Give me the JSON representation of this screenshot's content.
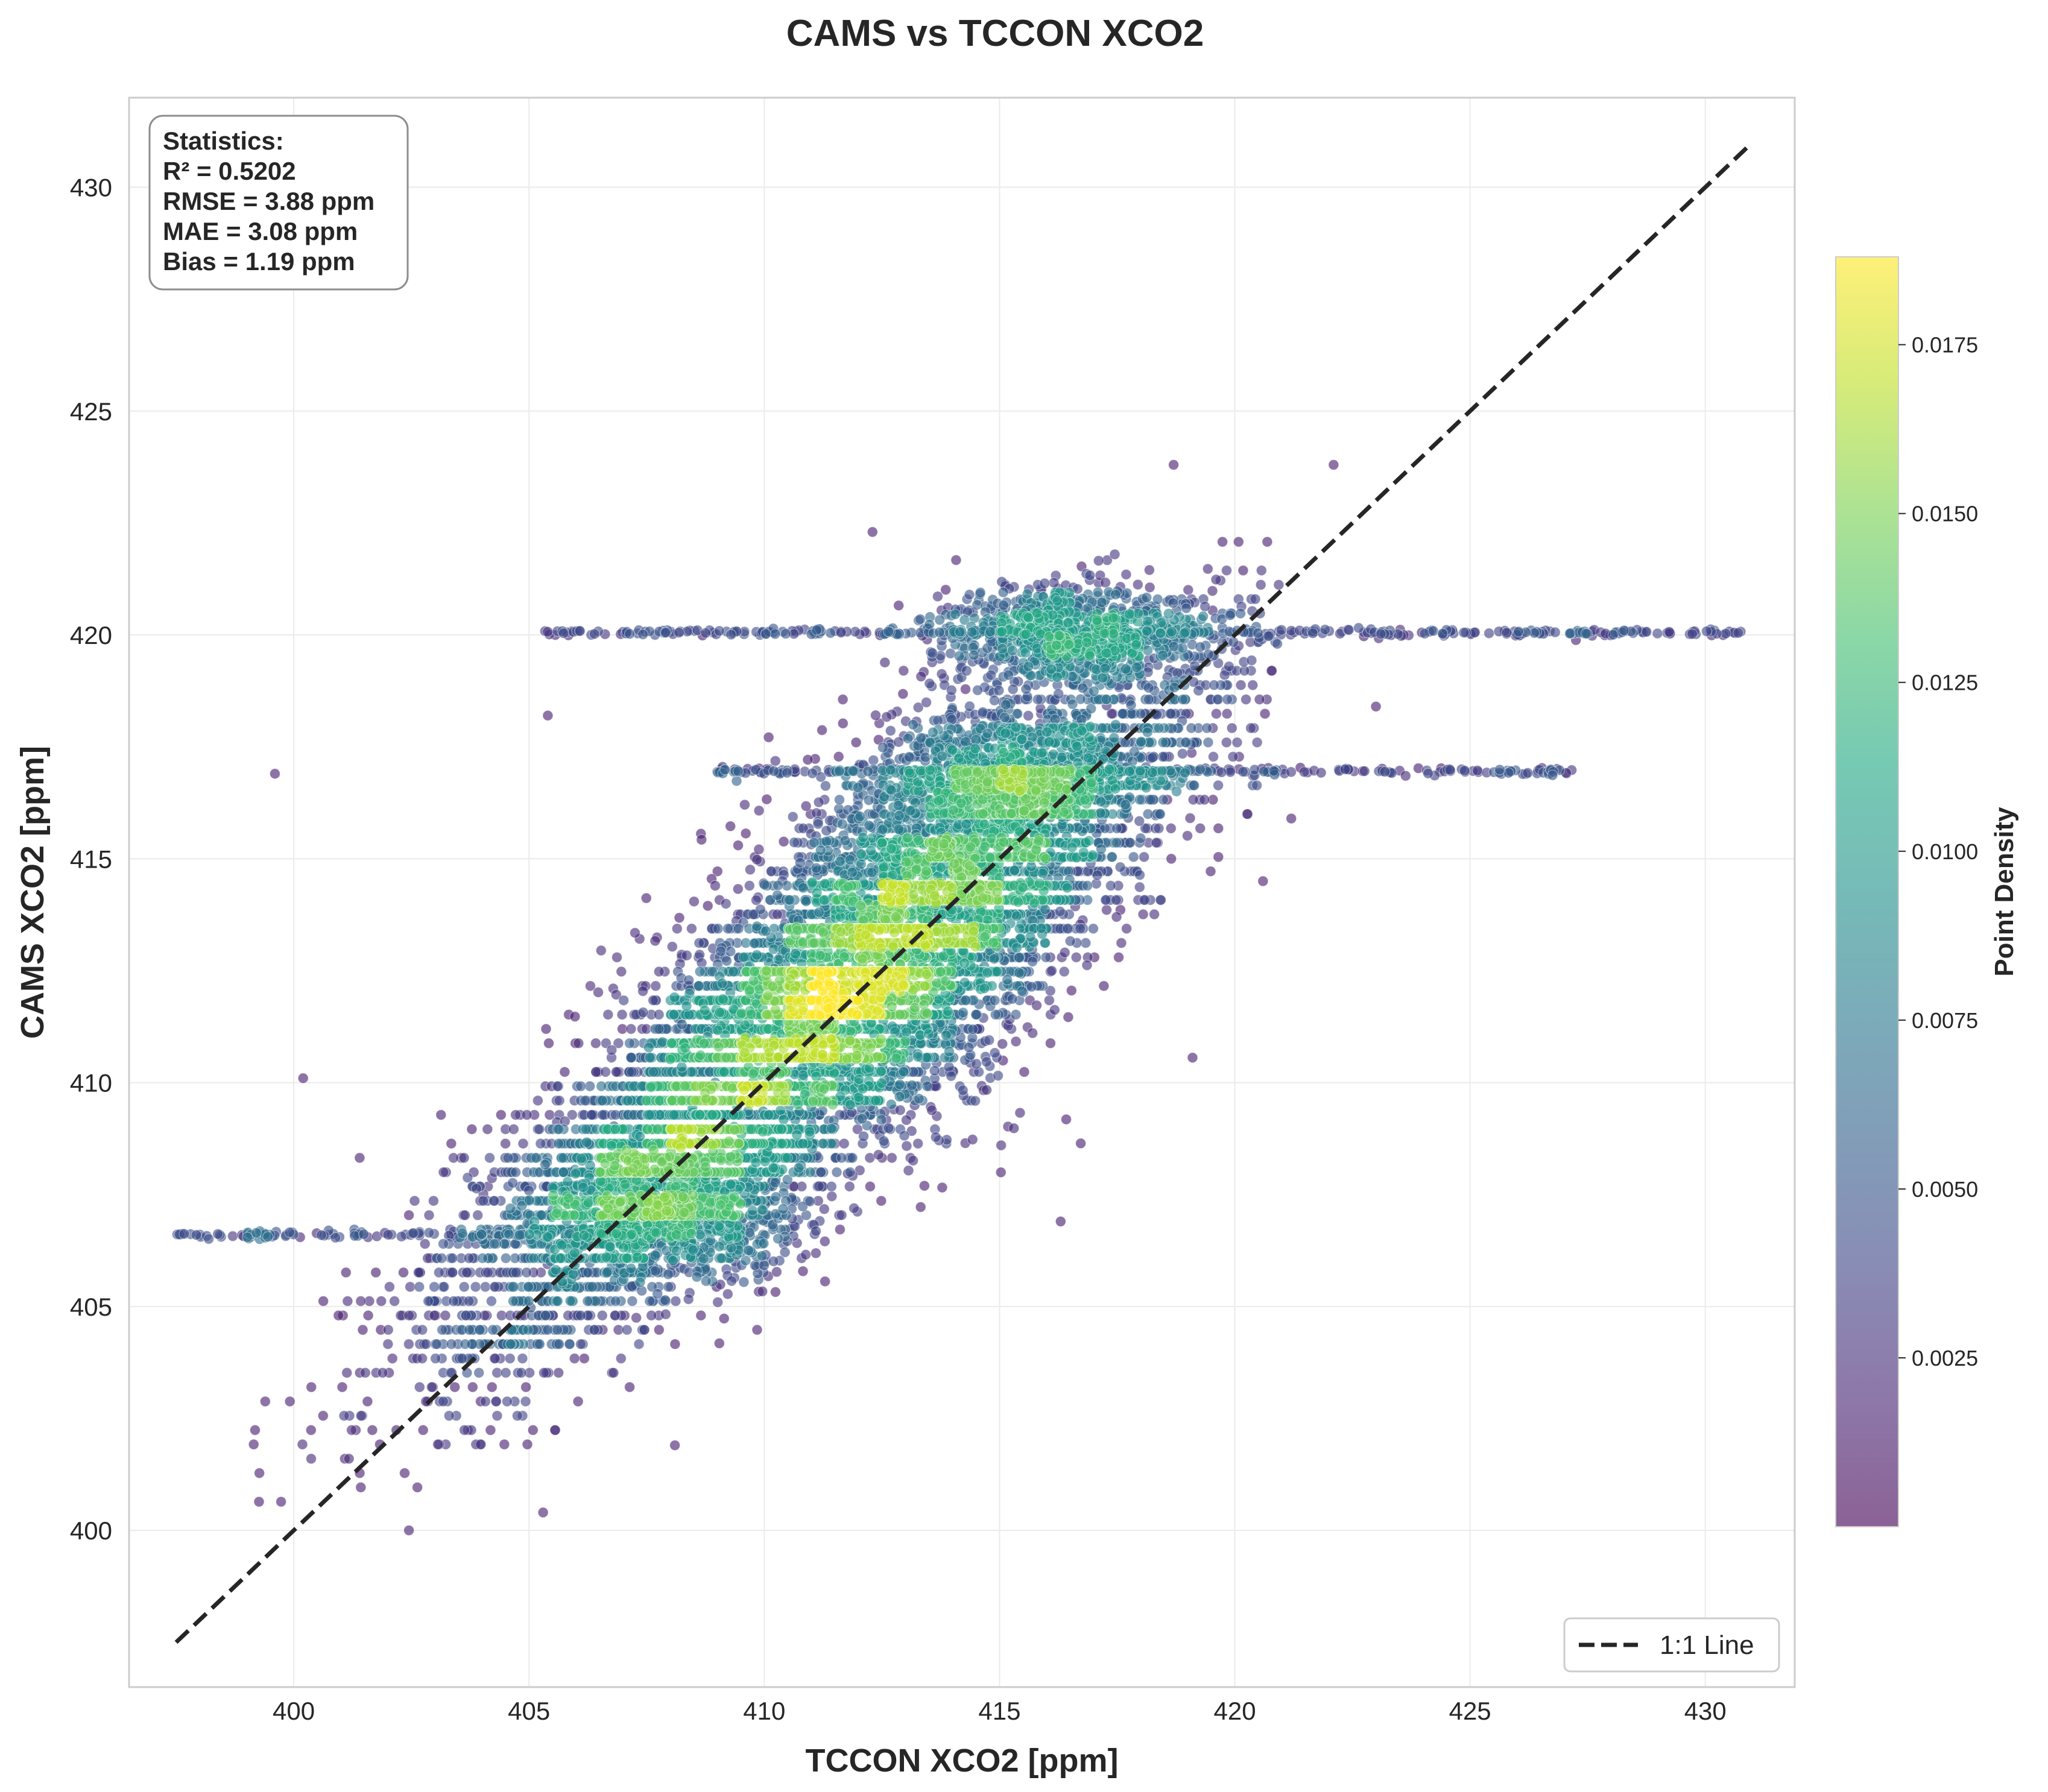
{
  "chart_data": {
    "type": "scatter",
    "title": "CAMS vs TCCON XCO2",
    "xlabel": "TCCON XCO2 [ppm]",
    "ylabel": "CAMS XCO2 [ppm]",
    "xlim": [
      396.5,
      431.9
    ],
    "ylim": [
      396.5,
      432.0
    ],
    "xticks": [
      400,
      405,
      410,
      415,
      420,
      425,
      430
    ],
    "yticks": [
      400,
      405,
      410,
      415,
      420,
      425,
      430
    ],
    "grid": true,
    "colormap": "viridis",
    "colorbar": {
      "label": "Point Density",
      "range": [
        0.0,
        0.0188
      ],
      "ticks": [
        "0.0025",
        "0.0050",
        "0.0075",
        "0.0100",
        "0.0125",
        "0.0150",
        "0.0175"
      ],
      "tick_values": [
        0.0025,
        0.005,
        0.0075,
        0.01,
        0.0125,
        0.015,
        0.0175
      ]
    },
    "reference_line": {
      "name": "1:1 Line",
      "x": [
        397.5,
        430.9
      ],
      "y": [
        397.5,
        430.9
      ],
      "style": "dashed",
      "color": "#262626"
    },
    "legend": {
      "position": "bottom-right",
      "entries": [
        "1:1 Line"
      ]
    },
    "stats_box": {
      "position": "top-left",
      "lines": [
        "Statistics:",
        "R² = 0.5202",
        "RMSE = 3.88 ppm",
        "MAE = 3.08 ppm",
        "Bias = 1.19 ppm"
      ]
    },
    "density_clusters": [
      {
        "x": 415.2,
        "y": 416.9,
        "sx": 1.4,
        "sy": 0.7,
        "density": 0.0185
      },
      {
        "x": 416.6,
        "y": 420.0,
        "sx": 1.5,
        "sy": 0.6,
        "density": 0.016
      },
      {
        "x": 413.5,
        "y": 414.5,
        "sx": 1.6,
        "sy": 1.2,
        "density": 0.008
      },
      {
        "x": 411.5,
        "y": 411.5,
        "sx": 1.8,
        "sy": 1.5,
        "density": 0.006
      },
      {
        "x": 408.0,
        "y": 407.0,
        "sx": 1.4,
        "sy": 0.8,
        "density": 0.01
      }
    ],
    "horizontal_bands": [
      {
        "y": 420.05,
        "x_from": 405.3,
        "x_to": 430.8,
        "density": 0.004
      },
      {
        "y": 416.95,
        "x_from": 409.0,
        "x_to": 427.4,
        "density": 0.006
      },
      {
        "y": 406.6,
        "x_from": 397.5,
        "x_to": 407.5,
        "density": 0.004
      }
    ],
    "outliers": [
      {
        "x": 399.6,
        "y": 416.9
      },
      {
        "x": 400.2,
        "y": 410.1
      },
      {
        "x": 405.4,
        "y": 418.2
      },
      {
        "x": 405.3,
        "y": 400.4
      },
      {
        "x": 408.1,
        "y": 401.9
      },
      {
        "x": 412.3,
        "y": 422.3
      },
      {
        "x": 416.3,
        "y": 406.9
      },
      {
        "x": 418.7,
        "y": 423.8
      },
      {
        "x": 422.1,
        "y": 423.8
      },
      {
        "x": 423.0,
        "y": 418.4
      },
      {
        "x": 421.2,
        "y": 415.9
      },
      {
        "x": 420.6,
        "y": 414.5
      }
    ]
  },
  "colors": {
    "reference_line": "#262626",
    "axes_frame": "#cccccc",
    "grid": "#ebebeb",
    "text": "#262626"
  }
}
